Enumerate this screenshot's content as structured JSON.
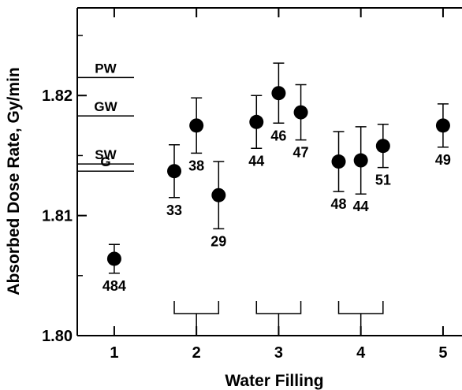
{
  "chart_data": {
    "type": "scatter",
    "title": "",
    "xlabel": "Water Filling",
    "ylabel": "Absorbed Dose Rate, Gy/min",
    "xlim": [
      0.55,
      5.25
    ],
    "ylim": [
      1.8,
      1.8273
    ],
    "x_ticks": [
      "1",
      "2",
      "3",
      "4",
      "5"
    ],
    "x_tick_values": [
      1,
      2,
      3,
      4,
      5
    ],
    "y_ticks": [
      "1.80",
      "1.81",
      "1.82"
    ],
    "y_tick_values": [
      1.8,
      1.81,
      1.82
    ],
    "grid": false,
    "colors": {
      "marker": "#000000",
      "axis": "#000000"
    },
    "points": [
      {
        "x": 1.0,
        "y": 1.8064,
        "err": 0.0012,
        "label": "484"
      },
      {
        "x": 1.73,
        "y": 1.8137,
        "err": 0.0022,
        "label": "33"
      },
      {
        "x": 2.0,
        "y": 1.8175,
        "err": 0.0023,
        "label": "38"
      },
      {
        "x": 2.27,
        "y": 1.8117,
        "err": 0.0028,
        "label": "29"
      },
      {
        "x": 2.73,
        "y": 1.8178,
        "err": 0.0022,
        "label": "44"
      },
      {
        "x": 3.0,
        "y": 1.8202,
        "err": 0.0025,
        "label": "46"
      },
      {
        "x": 3.27,
        "y": 1.8186,
        "err": 0.0023,
        "label": "47"
      },
      {
        "x": 3.73,
        "y": 1.8145,
        "err": 0.0025,
        "label": "48"
      },
      {
        "x": 4.0,
        "y": 1.8146,
        "err": 0.0028,
        "label": "44"
      },
      {
        "x": 4.27,
        "y": 1.8158,
        "err": 0.0018,
        "label": "51"
      },
      {
        "x": 5.0,
        "y": 1.8175,
        "err": 0.0018,
        "label": "49"
      }
    ],
    "reference_lines": [
      {
        "label": "PW",
        "y": 1.8215
      },
      {
        "label": "GW",
        "y": 1.8183
      },
      {
        "label": "SW",
        "y": 1.8143
      },
      {
        "label": "G",
        "y": 1.8137
      }
    ],
    "group_brackets": [
      {
        "x_start": 1.73,
        "x_end": 2.27,
        "center": 2.0
      },
      {
        "x_start": 2.73,
        "x_end": 3.27,
        "center": 3.0
      },
      {
        "x_start": 3.73,
        "x_end": 4.27,
        "center": 4.0
      }
    ]
  }
}
